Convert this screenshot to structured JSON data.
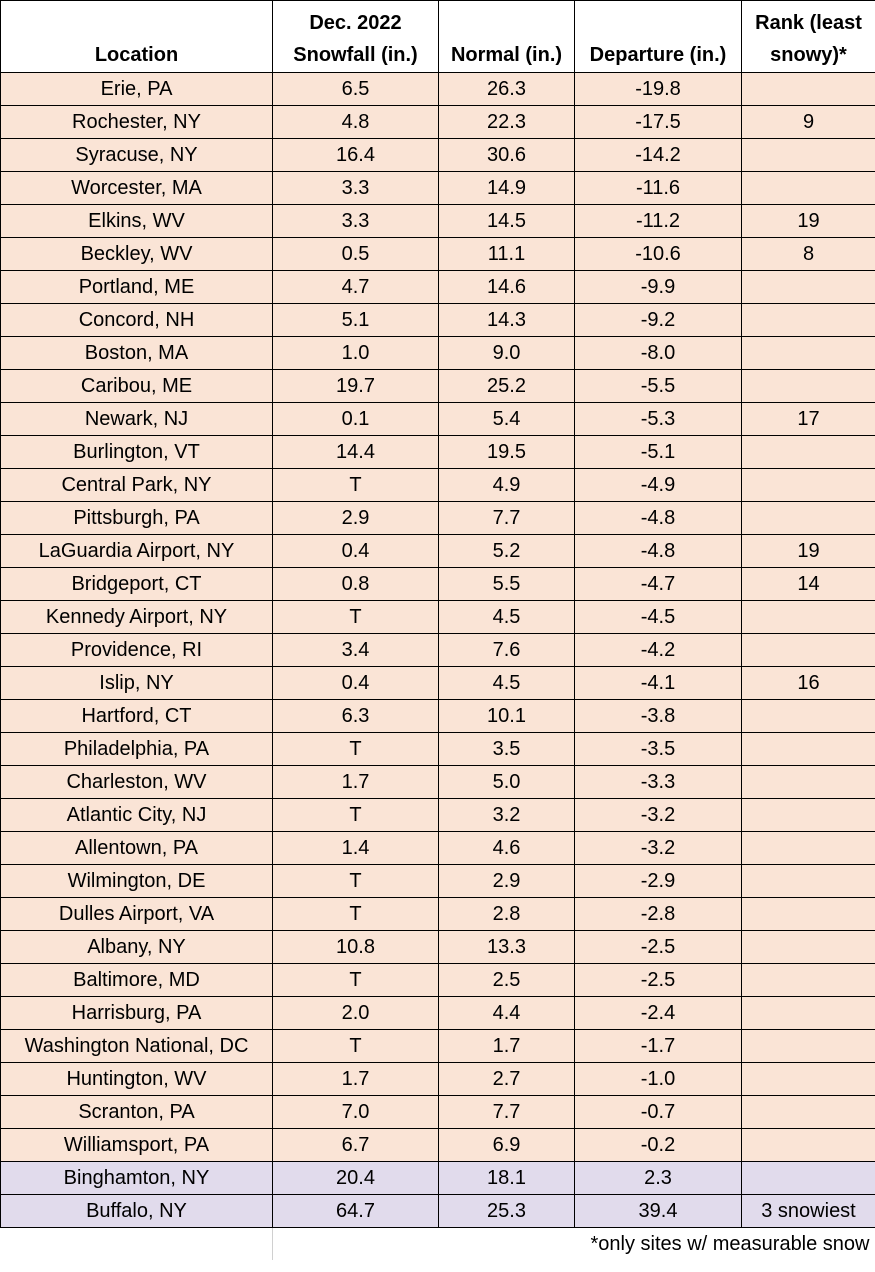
{
  "headers": {
    "location": "Location",
    "snowfall_line1": "Dec. 2022",
    "snowfall_line2": "Snowfall (in.)",
    "normal": "Normal (in.)",
    "departure": "Departure (in.)",
    "rank_line1": "Rank (least",
    "rank_line2": "snowy)*"
  },
  "colors": {
    "below_normal_fill": "#fae4d6",
    "above_normal_fill": "#e1dbec"
  },
  "rows": [
    {
      "location": "Erie, PA",
      "snowfall": "6.5",
      "normal": "26.3",
      "departure": "-19.8",
      "rank": "",
      "group": "deficit"
    },
    {
      "location": "Rochester, NY",
      "snowfall": "4.8",
      "normal": "22.3",
      "departure": "-17.5",
      "rank": "9",
      "group": "deficit"
    },
    {
      "location": "Syracuse, NY",
      "snowfall": "16.4",
      "normal": "30.6",
      "departure": "-14.2",
      "rank": "",
      "group": "deficit"
    },
    {
      "location": "Worcester, MA",
      "snowfall": "3.3",
      "normal": "14.9",
      "departure": "-11.6",
      "rank": "",
      "group": "deficit"
    },
    {
      "location": "Elkins, WV",
      "snowfall": "3.3",
      "normal": "14.5",
      "departure": "-11.2",
      "rank": "19",
      "group": "deficit"
    },
    {
      "location": "Beckley, WV",
      "snowfall": "0.5",
      "normal": "11.1",
      "departure": "-10.6",
      "rank": "8",
      "group": "deficit"
    },
    {
      "location": "Portland, ME",
      "snowfall": "4.7",
      "normal": "14.6",
      "departure": "-9.9",
      "rank": "",
      "group": "deficit"
    },
    {
      "location": "Concord, NH",
      "snowfall": "5.1",
      "normal": "14.3",
      "departure": "-9.2",
      "rank": "",
      "group": "deficit"
    },
    {
      "location": "Boston, MA",
      "snowfall": "1.0",
      "normal": "9.0",
      "departure": "-8.0",
      "rank": "",
      "group": "deficit"
    },
    {
      "location": "Caribou, ME",
      "snowfall": "19.7",
      "normal": "25.2",
      "departure": "-5.5",
      "rank": "",
      "group": "deficit"
    },
    {
      "location": "Newark, NJ",
      "snowfall": "0.1",
      "normal": "5.4",
      "departure": "-5.3",
      "rank": "17",
      "group": "deficit"
    },
    {
      "location": "Burlington, VT",
      "snowfall": "14.4",
      "normal": "19.5",
      "departure": "-5.1",
      "rank": "",
      "group": "deficit"
    },
    {
      "location": "Central Park, NY",
      "snowfall": "T",
      "normal": "4.9",
      "departure": "-4.9",
      "rank": "",
      "group": "deficit"
    },
    {
      "location": "Pittsburgh, PA",
      "snowfall": "2.9",
      "normal": "7.7",
      "departure": "-4.8",
      "rank": "",
      "group": "deficit"
    },
    {
      "location": "LaGuardia Airport, NY",
      "snowfall": "0.4",
      "normal": "5.2",
      "departure": "-4.8",
      "rank": "19",
      "group": "deficit"
    },
    {
      "location": "Bridgeport, CT",
      "snowfall": "0.8",
      "normal": "5.5",
      "departure": "-4.7",
      "rank": "14",
      "group": "deficit"
    },
    {
      "location": "Kennedy Airport, NY",
      "snowfall": "T",
      "normal": "4.5",
      "departure": "-4.5",
      "rank": "",
      "group": "deficit"
    },
    {
      "location": "Providence, RI",
      "snowfall": "3.4",
      "normal": "7.6",
      "departure": "-4.2",
      "rank": "",
      "group": "deficit"
    },
    {
      "location": "Islip, NY",
      "snowfall": "0.4",
      "normal": "4.5",
      "departure": "-4.1",
      "rank": "16",
      "group": "deficit"
    },
    {
      "location": "Hartford, CT",
      "snowfall": "6.3",
      "normal": "10.1",
      "departure": "-3.8",
      "rank": "",
      "group": "deficit"
    },
    {
      "location": "Philadelphia, PA",
      "snowfall": "T",
      "normal": "3.5",
      "departure": "-3.5",
      "rank": "",
      "group": "deficit"
    },
    {
      "location": "Charleston, WV",
      "snowfall": "1.7",
      "normal": "5.0",
      "departure": "-3.3",
      "rank": "",
      "group": "deficit"
    },
    {
      "location": "Atlantic City, NJ",
      "snowfall": "T",
      "normal": "3.2",
      "departure": "-3.2",
      "rank": "",
      "group": "deficit"
    },
    {
      "location": "Allentown, PA",
      "snowfall": "1.4",
      "normal": "4.6",
      "departure": "-3.2",
      "rank": "",
      "group": "deficit"
    },
    {
      "location": "Wilmington, DE",
      "snowfall": "T",
      "normal": "2.9",
      "departure": "-2.9",
      "rank": "",
      "group": "deficit"
    },
    {
      "location": "Dulles Airport, VA",
      "snowfall": "T",
      "normal": "2.8",
      "departure": "-2.8",
      "rank": "",
      "group": "deficit"
    },
    {
      "location": "Albany, NY",
      "snowfall": "10.8",
      "normal": "13.3",
      "departure": "-2.5",
      "rank": "",
      "group": "deficit"
    },
    {
      "location": "Baltimore, MD",
      "snowfall": "T",
      "normal": "2.5",
      "departure": "-2.5",
      "rank": "",
      "group": "deficit"
    },
    {
      "location": "Harrisburg, PA",
      "snowfall": "2.0",
      "normal": "4.4",
      "departure": "-2.4",
      "rank": "",
      "group": "deficit"
    },
    {
      "location": "Washington National, DC",
      "snowfall": "T",
      "normal": "1.7",
      "departure": "-1.7",
      "rank": "",
      "group": "deficit"
    },
    {
      "location": "Huntington, WV",
      "snowfall": "1.7",
      "normal": "2.7",
      "departure": "-1.0",
      "rank": "",
      "group": "deficit"
    },
    {
      "location": "Scranton, PA",
      "snowfall": "7.0",
      "normal": "7.7",
      "departure": "-0.7",
      "rank": "",
      "group": "deficit"
    },
    {
      "location": "Williamsport, PA",
      "snowfall": "6.7",
      "normal": "6.9",
      "departure": "-0.2",
      "rank": "",
      "group": "deficit"
    },
    {
      "location": "Binghamton, NY",
      "snowfall": "20.4",
      "normal": "18.1",
      "departure": "2.3",
      "rank": "",
      "group": "surplus"
    },
    {
      "location": "Buffalo, NY",
      "snowfall": "64.7",
      "normal": "25.3",
      "departure": "39.4",
      "rank": "3 snowiest",
      "group": "surplus"
    }
  ],
  "footnote": "*only sites w/ measurable snow"
}
